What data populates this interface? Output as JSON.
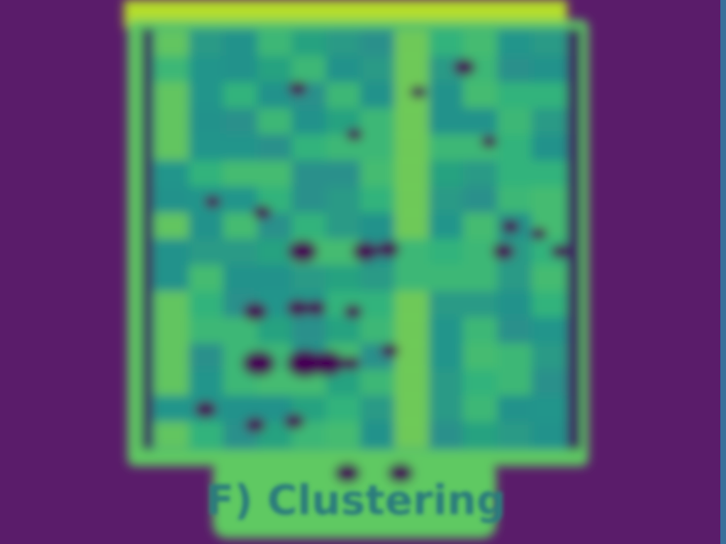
{
  "caption": "F) Clustering"
}
